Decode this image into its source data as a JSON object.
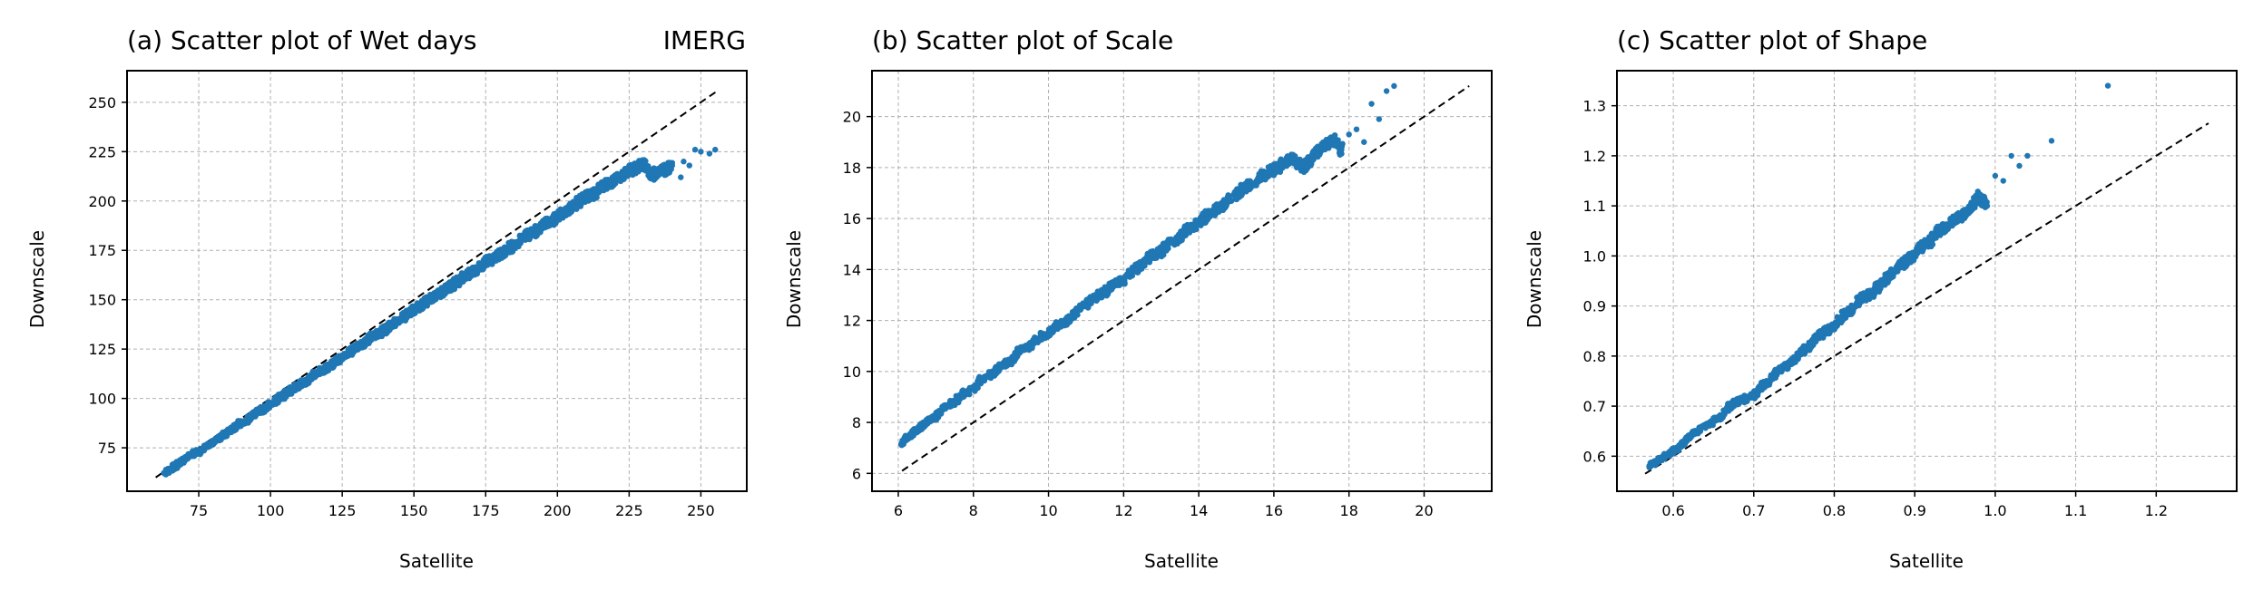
{
  "figure": {
    "panels": [
      {
        "title": "(a) Scatter plot of Wet days",
        "right_title": "IMERG",
        "xlabel": "Satellite",
        "ylabel": "Downscale",
        "xticks": [
          "75",
          "100",
          "125",
          "150",
          "175",
          "200",
          "225",
          "250"
        ],
        "yticks": [
          "75",
          "100",
          "125",
          "150",
          "175",
          "200",
          "225",
          "250"
        ]
      },
      {
        "title": "(b) Scatter plot of Scale",
        "xlabel": "Satellite",
        "ylabel": "Downscale",
        "xticks": [
          "6",
          "8",
          "10",
          "12",
          "14",
          "16",
          "18",
          "20"
        ],
        "yticks": [
          "6",
          "8",
          "10",
          "12",
          "14",
          "16",
          "18",
          "20"
        ]
      },
      {
        "title": "(c) Scatter plot of Shape",
        "xlabel": "Satellite",
        "ylabel": "Downscale",
        "xticks": [
          "0.6",
          "0.7",
          "0.8",
          "0.9",
          "1.0",
          "1.1",
          "1.2"
        ],
        "yticks": [
          "0.6",
          "0.7",
          "0.8",
          "0.9",
          "1.0",
          "1.1",
          "1.2",
          "1.3"
        ]
      }
    ]
  },
  "colors": {
    "points": "#1f77b4",
    "reference_line": "#000000",
    "grid": "#b0b0b0"
  },
  "chart_data": [
    {
      "type": "scatter",
      "title": "(a) Scatter plot of Wet days",
      "right_title": "IMERG",
      "xlabel": "Satellite",
      "ylabel": "Downscale",
      "xlim": [
        50,
        266
      ],
      "ylim": [
        53,
        266
      ],
      "xticks": [
        75,
        100,
        125,
        150,
        175,
        200,
        225,
        250
      ],
      "yticks": [
        75,
        100,
        125,
        150,
        175,
        200,
        225,
        250
      ],
      "grid": true,
      "reference_line": {
        "style": "dashed",
        "from": [
          60,
          60
        ],
        "to": [
          256,
          256
        ]
      },
      "series": [
        {
          "points": [
            [
              63,
              62
            ],
            [
              65,
              64
            ],
            [
              68,
              67
            ],
            [
              70,
              69
            ],
            [
              73,
              72
            ],
            [
              75,
              73
            ],
            [
              78,
              76
            ],
            [
              80,
              78
            ],
            [
              83,
              81
            ],
            [
              85,
              83
            ],
            [
              88,
              86
            ],
            [
              90,
              88
            ],
            [
              93,
              90
            ],
            [
              95,
              93
            ],
            [
              98,
              95
            ],
            [
              100,
              97
            ],
            [
              103,
              100
            ],
            [
              105,
              102
            ],
            [
              108,
              105
            ],
            [
              110,
              107
            ],
            [
              113,
              109
            ],
            [
              115,
              112
            ],
            [
              118,
              114
            ],
            [
              120,
              116
            ],
            [
              123,
              119
            ],
            [
              125,
              121
            ],
            [
              128,
              124
            ],
            [
              130,
              126
            ],
            [
              133,
              128
            ],
            [
              135,
              131
            ],
            [
              138,
              133
            ],
            [
              140,
              135
            ],
            [
              143,
              138
            ],
            [
              145,
              140
            ],
            [
              148,
              143
            ],
            [
              150,
              145
            ],
            [
              153,
              147
            ],
            [
              155,
              150
            ],
            [
              158,
              152
            ],
            [
              160,
              154
            ],
            [
              163,
              157
            ],
            [
              165,
              159
            ],
            [
              168,
              162
            ],
            [
              170,
              164
            ],
            [
              173,
              166
            ],
            [
              175,
              169
            ],
            [
              178,
              171
            ],
            [
              180,
              173
            ],
            [
              183,
              176
            ],
            [
              185,
              178
            ],
            [
              188,
              181
            ],
            [
              190,
              183
            ],
            [
              193,
              185
            ],
            [
              195,
              188
            ],
            [
              198,
              190
            ],
            [
              200,
              192
            ],
            [
              203,
              195
            ],
            [
              205,
              197
            ],
            [
              208,
              200
            ],
            [
              210,
              202
            ],
            [
              213,
              204
            ],
            [
              215,
              207
            ],
            [
              218,
              209
            ],
            [
              220,
              211
            ],
            [
              223,
              213
            ],
            [
              225,
              215
            ],
            [
              228,
              217
            ],
            [
              230,
              219
            ],
            [
              233,
              212
            ],
            [
              235,
              215
            ],
            [
              238,
              216
            ],
            [
              240,
              218
            ],
            [
              243,
              212
            ],
            [
              244,
              220
            ],
            [
              246,
              218
            ],
            [
              248,
              226
            ],
            [
              250,
              225
            ],
            [
              253,
              224
            ],
            [
              255,
              226
            ]
          ]
        }
      ]
    },
    {
      "type": "scatter",
      "title": "(b) Scatter plot of Scale",
      "xlabel": "Satellite",
      "ylabel": "Downscale",
      "xlim": [
        5.3,
        21.8
      ],
      "ylim": [
        5.3,
        21.8
      ],
      "xticks": [
        6,
        8,
        10,
        12,
        14,
        16,
        18,
        20
      ],
      "yticks": [
        6,
        8,
        10,
        12,
        14,
        16,
        18,
        20
      ],
      "grid": true,
      "reference_line": {
        "style": "dashed",
        "from": [
          6.1,
          6.1
        ],
        "to": [
          21.2,
          21.2
        ]
      },
      "series": [
        {
          "points": [
            [
              6.1,
              7.2
            ],
            [
              6.3,
              7.5
            ],
            [
              6.5,
              7.7
            ],
            [
              6.8,
              8.1
            ],
            [
              7.0,
              8.2
            ],
            [
              7.2,
              8.6
            ],
            [
              7.5,
              8.8
            ],
            [
              7.7,
              9.1
            ],
            [
              8.0,
              9.3
            ],
            [
              8.2,
              9.7
            ],
            [
              8.5,
              9.9
            ],
            [
              8.7,
              10.2
            ],
            [
              9.0,
              10.4
            ],
            [
              9.2,
              10.8
            ],
            [
              9.5,
              11.0
            ],
            [
              9.7,
              11.3
            ],
            [
              10.0,
              11.5
            ],
            [
              10.2,
              11.8
            ],
            [
              10.5,
              12.0
            ],
            [
              10.7,
              12.3
            ],
            [
              11.0,
              12.6
            ],
            [
              11.2,
              12.9
            ],
            [
              11.5,
              13.1
            ],
            [
              11.7,
              13.4
            ],
            [
              12.0,
              13.6
            ],
            [
              12.2,
              13.9
            ],
            [
              12.5,
              14.2
            ],
            [
              12.7,
              14.5
            ],
            [
              13.0,
              14.7
            ],
            [
              13.2,
              15.0
            ],
            [
              13.5,
              15.3
            ],
            [
              13.7,
              15.6
            ],
            [
              14.0,
              15.8
            ],
            [
              14.2,
              16.1
            ],
            [
              14.5,
              16.4
            ],
            [
              14.7,
              16.6
            ],
            [
              15.0,
              16.9
            ],
            [
              15.2,
              17.2
            ],
            [
              15.5,
              17.4
            ],
            [
              15.7,
              17.7
            ],
            [
              16.0,
              17.9
            ],
            [
              16.2,
              18.1
            ],
            [
              16.5,
              18.3
            ],
            [
              16.8,
              18.0
            ],
            [
              17.0,
              18.3
            ],
            [
              17.3,
              18.8
            ],
            [
              17.6,
              19.1
            ],
            [
              17.8,
              18.7
            ],
            [
              18.0,
              19.3
            ],
            [
              18.2,
              19.5
            ],
            [
              18.4,
              19.0
            ],
            [
              18.6,
              20.5
            ],
            [
              18.8,
              19.9
            ],
            [
              19.0,
              21.0
            ],
            [
              19.2,
              21.2
            ]
          ]
        }
      ]
    },
    {
      "type": "scatter",
      "title": "(c) Scatter plot of Shape",
      "xlabel": "Satellite",
      "ylabel": "Downscale",
      "xlim": [
        0.53,
        1.3
      ],
      "ylim": [
        0.53,
        1.37
      ],
      "xticks": [
        0.6,
        0.7,
        0.8,
        0.9,
        1.0,
        1.1,
        1.2
      ],
      "yticks": [
        0.6,
        0.7,
        0.8,
        0.9,
        1.0,
        1.1,
        1.2,
        1.3
      ],
      "grid": true,
      "reference_line": {
        "style": "dashed",
        "from": [
          0.565,
          0.565
        ],
        "to": [
          1.265,
          1.265
        ]
      },
      "series": [
        {
          "points": [
            [
              0.57,
              0.58
            ],
            [
              0.58,
              0.59
            ],
            [
              0.6,
              0.61
            ],
            [
              0.61,
              0.62
            ],
            [
              0.62,
              0.64
            ],
            [
              0.63,
              0.65
            ],
            [
              0.65,
              0.67
            ],
            [
              0.66,
              0.68
            ],
            [
              0.67,
              0.7
            ],
            [
              0.68,
              0.71
            ],
            [
              0.7,
              0.72
            ],
            [
              0.71,
              0.74
            ],
            [
              0.72,
              0.75
            ],
            [
              0.73,
              0.77
            ],
            [
              0.74,
              0.78
            ],
            [
              0.75,
              0.79
            ],
            [
              0.76,
              0.81
            ],
            [
              0.77,
              0.82
            ],
            [
              0.78,
              0.84
            ],
            [
              0.79,
              0.85
            ],
            [
              0.8,
              0.86
            ],
            [
              0.81,
              0.88
            ],
            [
              0.82,
              0.89
            ],
            [
              0.83,
              0.91
            ],
            [
              0.84,
              0.92
            ],
            [
              0.85,
              0.93
            ],
            [
              0.86,
              0.95
            ],
            [
              0.87,
              0.96
            ],
            [
              0.88,
              0.98
            ],
            [
              0.89,
              0.99
            ],
            [
              0.9,
              1.0
            ],
            [
              0.91,
              1.02
            ],
            [
              0.92,
              1.03
            ],
            [
              0.93,
              1.05
            ],
            [
              0.94,
              1.06
            ],
            [
              0.95,
              1.07
            ],
            [
              0.96,
              1.08
            ],
            [
              0.97,
              1.1
            ],
            [
              0.98,
              1.12
            ],
            [
              0.99,
              1.1
            ],
            [
              1.0,
              1.16
            ],
            [
              1.01,
              1.15
            ],
            [
              1.02,
              1.2
            ],
            [
              1.03,
              1.18
            ],
            [
              1.04,
              1.2
            ],
            [
              1.07,
              1.23
            ],
            [
              1.14,
              1.34
            ]
          ]
        }
      ]
    }
  ]
}
